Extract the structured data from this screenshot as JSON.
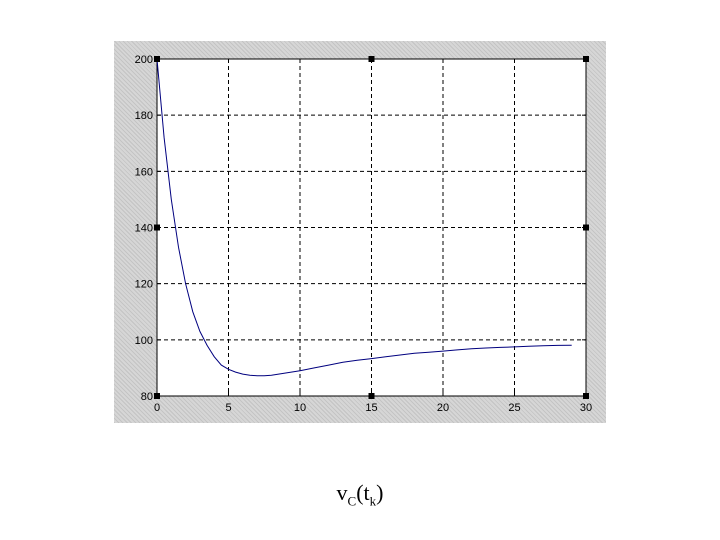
{
  "chart_data": {
    "type": "line",
    "title": "",
    "xlabel": "",
    "ylabel": "",
    "xlim": [
      0,
      30
    ],
    "ylim": [
      80,
      200
    ],
    "grid": true,
    "x_ticks": [
      0,
      5,
      10,
      15,
      20,
      25,
      30
    ],
    "y_ticks": [
      80,
      100,
      120,
      140,
      160,
      180,
      200
    ],
    "x_tick_labels": [
      "0",
      "5",
      "10",
      "15",
      "20",
      "25",
      "30"
    ],
    "y_tick_labels": [
      "80",
      "100",
      "120",
      "140",
      "160",
      "180",
      "200"
    ],
    "line_color": "#00007f",
    "series": [
      {
        "x": [
          0,
          0.5,
          1,
          1.5,
          2,
          2.5,
          3,
          3.5,
          4,
          4.5,
          5,
          5.5,
          6,
          6.5,
          7,
          7.5,
          8,
          9,
          10,
          11,
          12,
          13,
          14,
          15,
          16,
          17,
          18,
          19,
          20,
          21,
          22,
          23,
          24,
          25,
          26,
          27,
          28,
          29
        ],
        "y": [
          200,
          172,
          150,
          133,
          120,
          110,
          103,
          98,
          94,
          91,
          89.5,
          88.5,
          87.8,
          87.4,
          87.2,
          87.2,
          87.4,
          88.2,
          89,
          90,
          91,
          92,
          92.7,
          93.3,
          94,
          94.6,
          95.2,
          95.6,
          96,
          96.4,
          96.8,
          97.1,
          97.3,
          97.5,
          97.7,
          97.9,
          98,
          98.1
        ]
      }
    ]
  },
  "caption": {
    "main": "v",
    "main_sub": "C",
    "open": "(t",
    "arg_sub": "k",
    "close": ")"
  }
}
